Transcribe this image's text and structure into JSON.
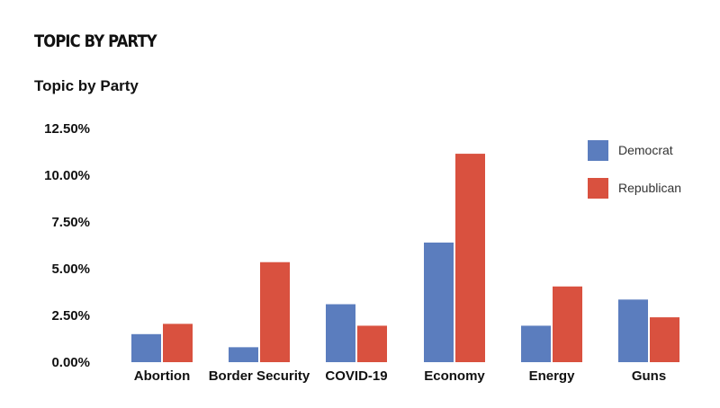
{
  "header": {
    "title": "TOPIC BY PARTY"
  },
  "colors": {
    "democrat": "#5b7dbe",
    "republican": "#d9513f"
  },
  "chart_data": {
    "type": "bar",
    "title": "Topic by Party",
    "xlabel": "",
    "ylabel": "",
    "categories": [
      "Abortion",
      "Border Security",
      "COVID-19",
      "Economy",
      "Energy",
      "Guns"
    ],
    "series": [
      {
        "name": "Democrat",
        "values": [
          1.5,
          0.8,
          3.1,
          6.4,
          1.95,
          3.35
        ]
      },
      {
        "name": "Republican",
        "values": [
          2.05,
          5.35,
          1.95,
          11.15,
          4.05,
          2.4
        ]
      }
    ],
    "ylim": [
      0,
      12.5
    ],
    "yticks": [
      "0.00%",
      "2.50%",
      "5.00%",
      "7.50%",
      "10.00%",
      "12.50%"
    ],
    "ytick_values": [
      0,
      2.5,
      5,
      7.5,
      10,
      12.5
    ],
    "legend_position": "top-right",
    "grid": false
  }
}
